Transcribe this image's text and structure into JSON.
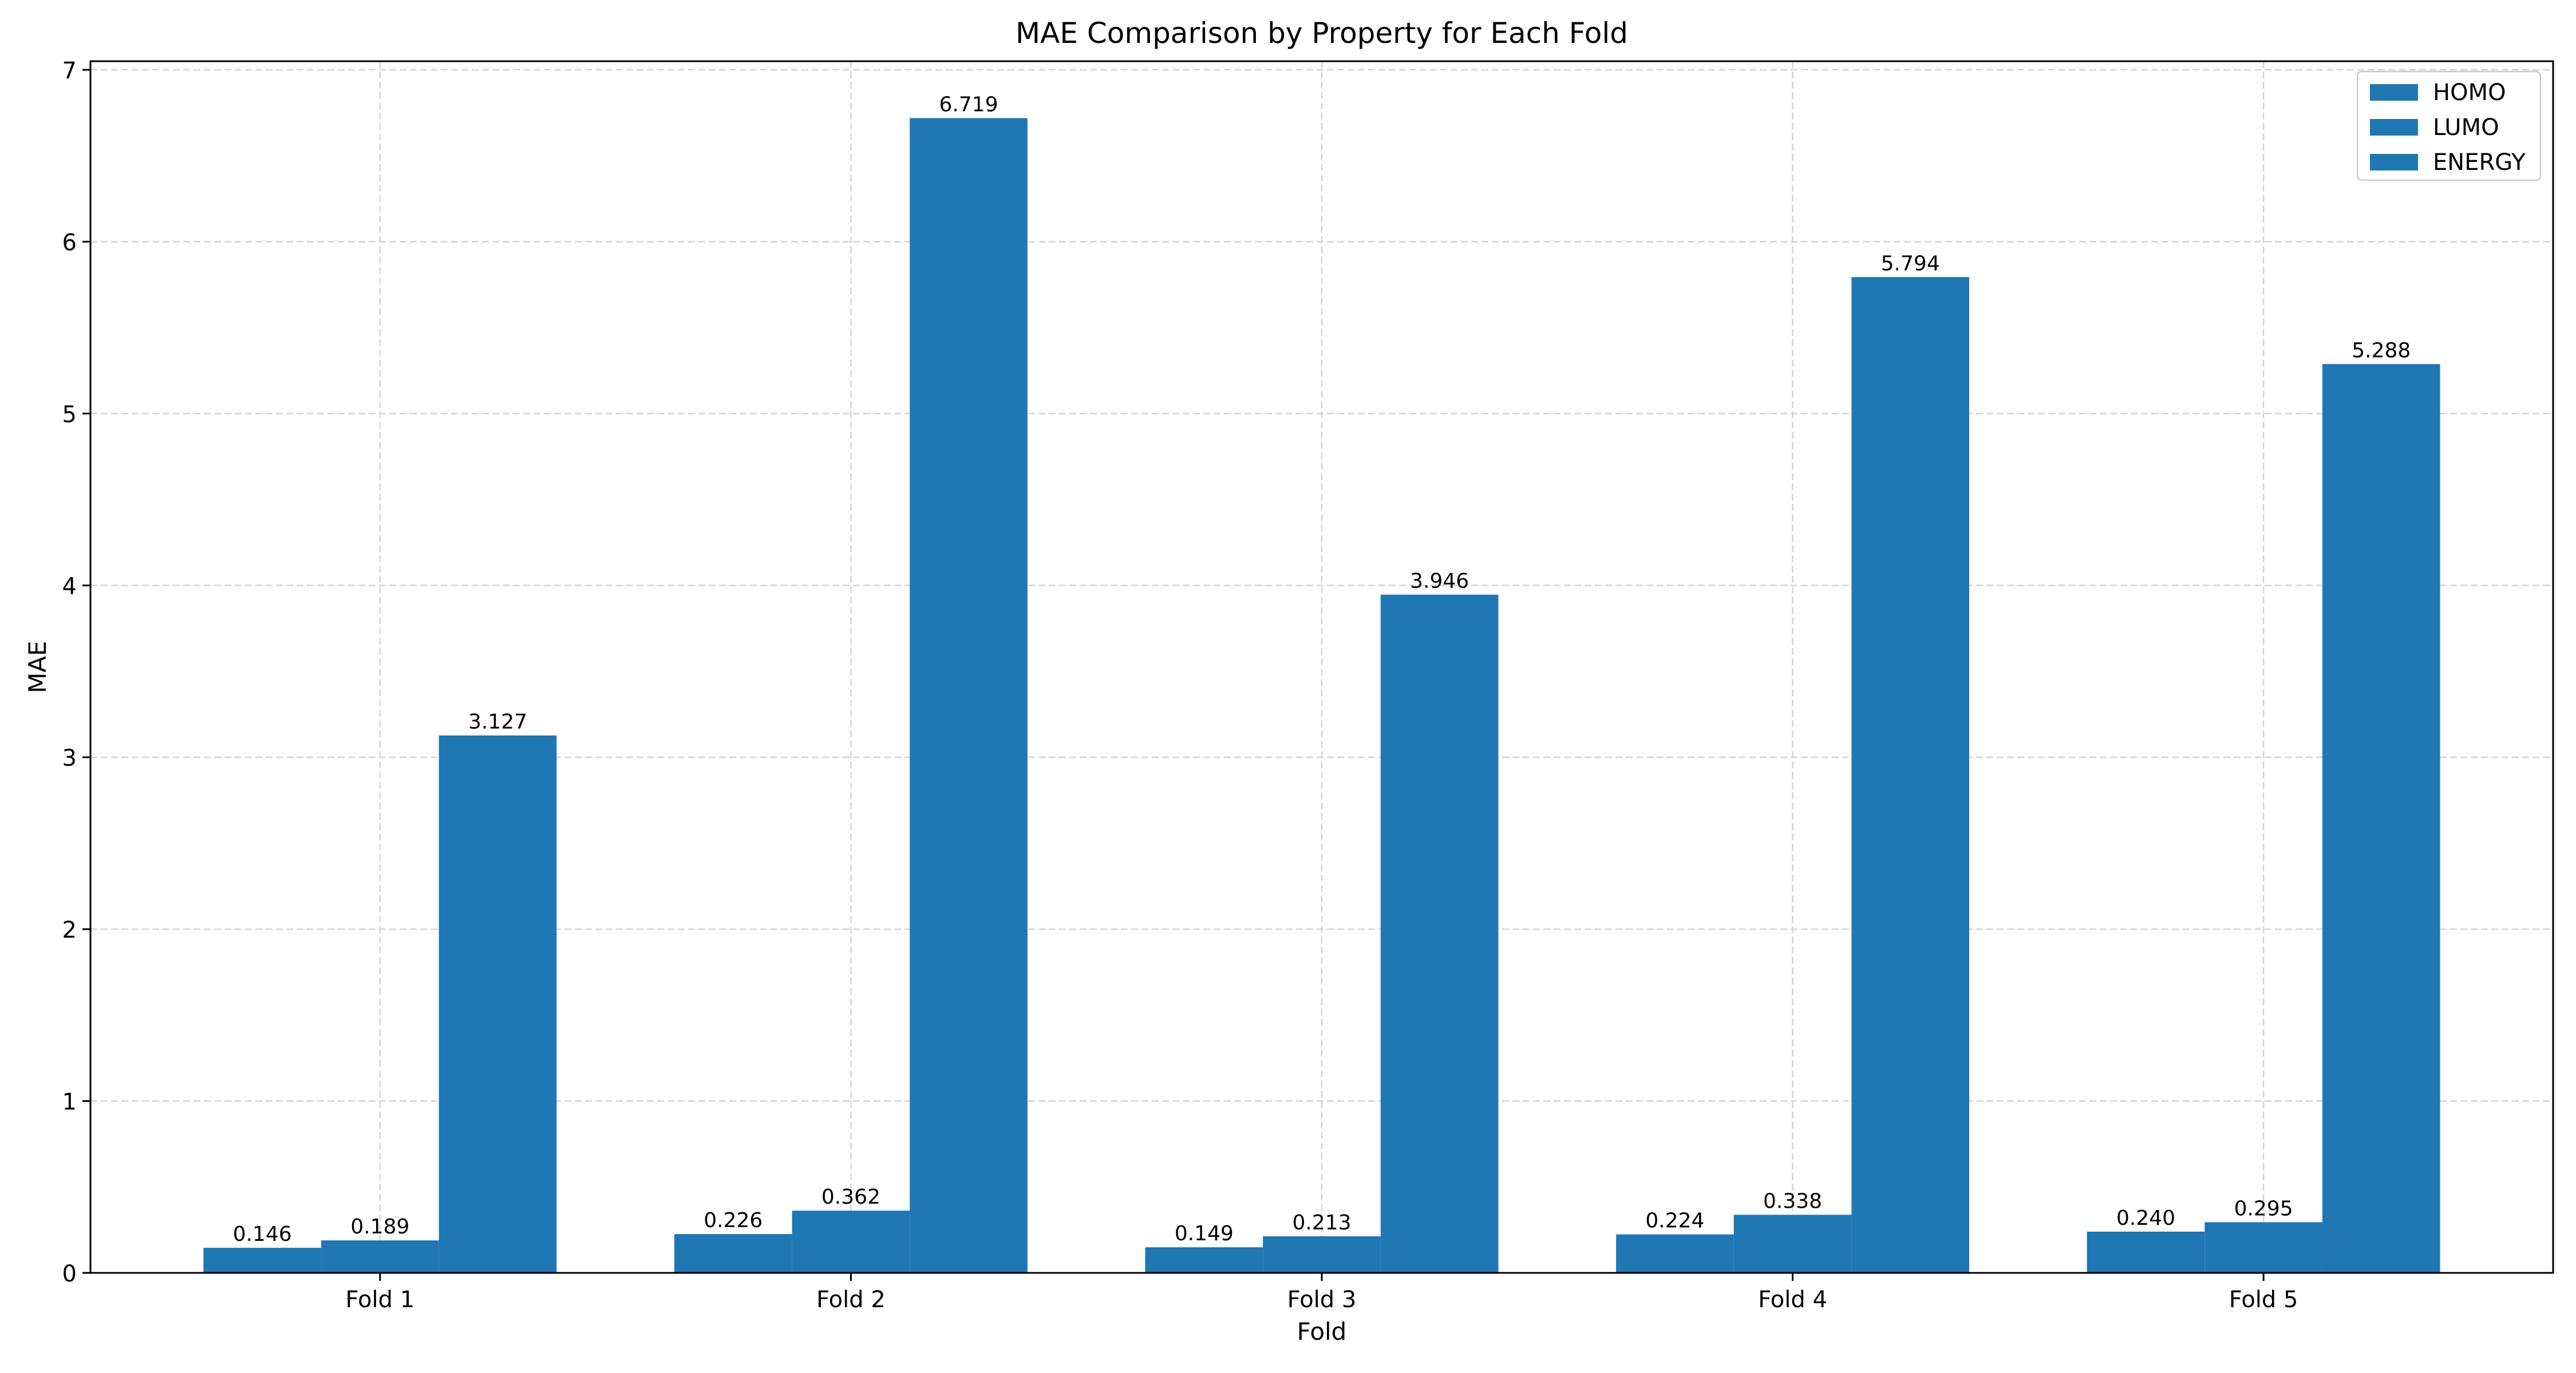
{
  "chart_data": {
    "type": "bar",
    "title": "MAE Comparison by Property for Each Fold",
    "xlabel": "Fold",
    "ylabel": "MAE",
    "categories": [
      "Fold 1",
      "Fold 2",
      "Fold 3",
      "Fold 4",
      "Fold 5"
    ],
    "series": [
      {
        "name": "HOMO",
        "values": [
          0.146,
          0.226,
          0.149,
          0.224,
          0.24
        ],
        "labels": [
          "0.146",
          "0.226",
          "0.149",
          "0.224",
          "0.240"
        ]
      },
      {
        "name": "LUMO",
        "values": [
          0.189,
          0.362,
          0.213,
          0.338,
          0.295
        ],
        "labels": [
          "0.189",
          "0.362",
          "0.213",
          "0.338",
          "0.295"
        ]
      },
      {
        "name": "ENERGY",
        "values": [
          3.127,
          6.719,
          3.946,
          5.794,
          5.288
        ],
        "labels": [
          "3.127",
          "6.719",
          "3.946",
          "5.794",
          "5.288"
        ]
      }
    ],
    "ylim": [
      0,
      7.05
    ],
    "yticks": [
      "0",
      "1",
      "2",
      "3",
      "4",
      "5",
      "6",
      "7"
    ],
    "grid": true,
    "legend_position": "top-right",
    "colors": {
      "bar": "#1f77b4",
      "grid": "#d4d4d4",
      "axis": "#000000"
    }
  }
}
